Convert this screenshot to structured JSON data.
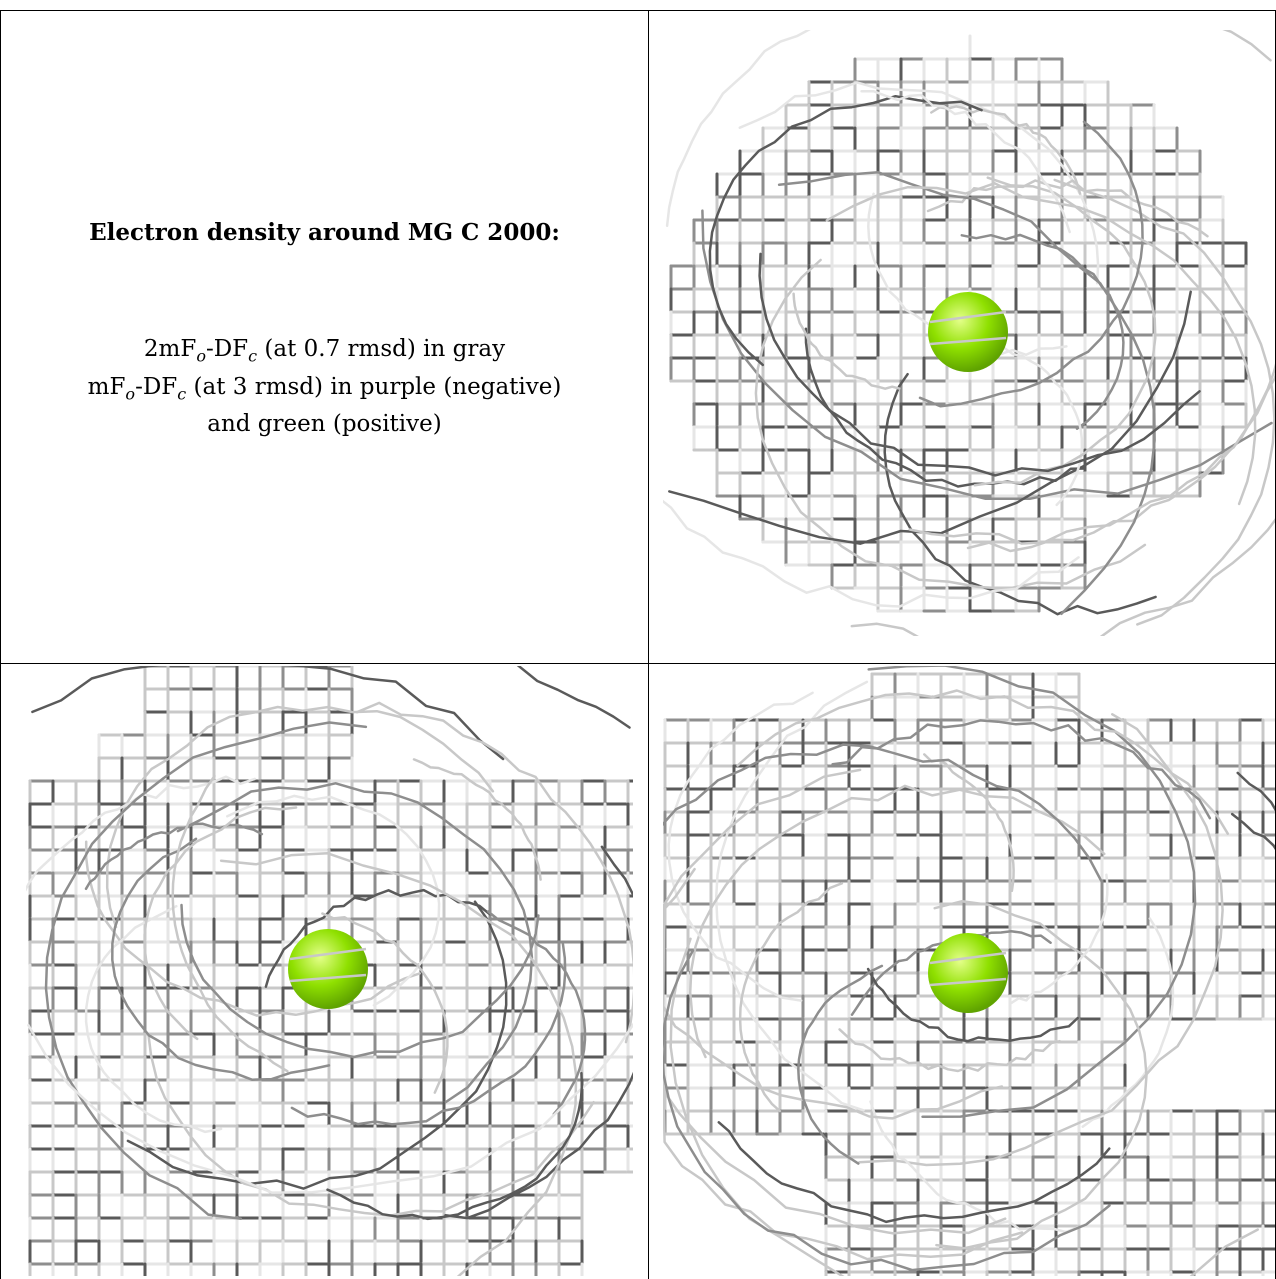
{
  "caption": {
    "title": "Electron density around MG C 2000:",
    "line1": {
      "a": "2mF",
      "sub1": "o",
      "b": "-DF",
      "sub2": "c",
      "c": " (at 0.7 rmsd) in gray"
    },
    "line2": {
      "a": "mF",
      "sub1": "o",
      "b": "-DF",
      "sub2": "c",
      "c": " (at 3 rmsd) in purple (negative)"
    },
    "line3": "and green (positive)"
  },
  "colors": {
    "mesh_dark": "#5a5a5a",
    "mesh_mid": "#8e8e8e",
    "mesh_light": "#c8c8c8",
    "mesh_faint": "#e6e6e6",
    "ion_green": "#8fe000",
    "ion_highlight": "#e4ff8a",
    "border": "#000000"
  },
  "icons": [
    "electron-density-mesh",
    "magnesium-ion-sphere"
  ]
}
